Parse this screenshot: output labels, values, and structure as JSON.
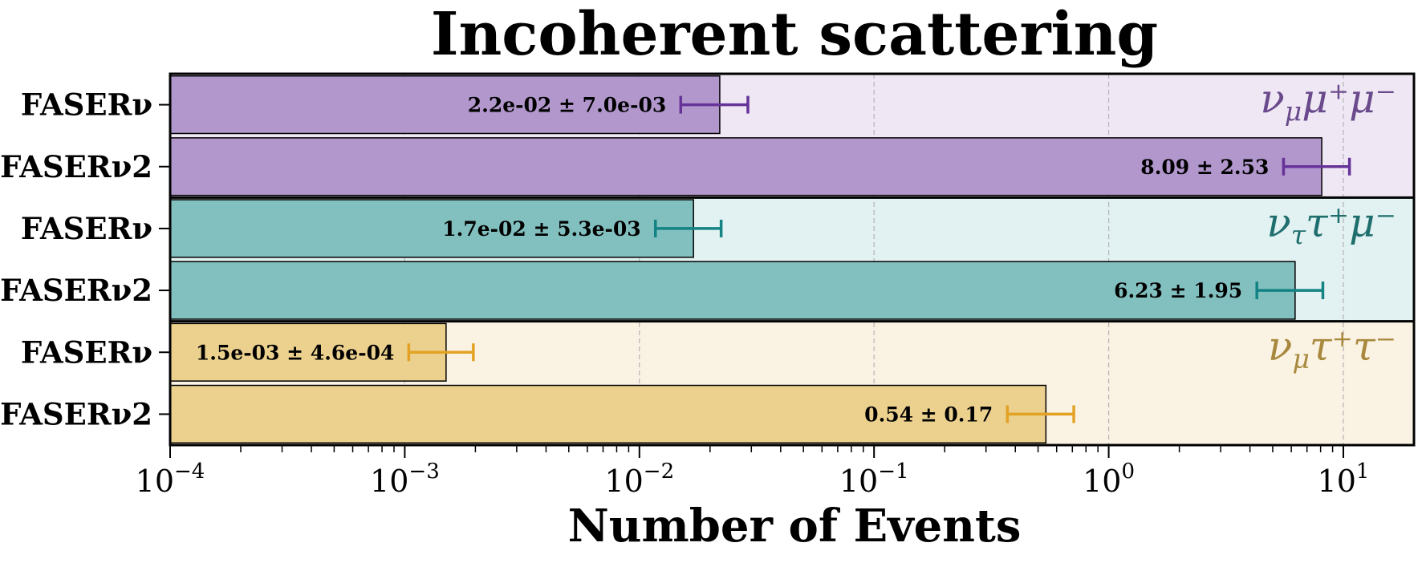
{
  "chart_data": {
    "type": "bar",
    "orientation": "horizontal",
    "title": "Incoherent scattering",
    "xlabel": "Number of Events",
    "ylabel": "",
    "x_scale": "log",
    "xlim": [
      0.0001,
      20
    ],
    "x_ticks": [
      {
        "value": 0.0001,
        "base": "10",
        "exp": "−4"
      },
      {
        "value": 0.001,
        "base": "10",
        "exp": "−3"
      },
      {
        "value": 0.01,
        "base": "10",
        "exp": "−2"
      },
      {
        "value": 0.1,
        "base": "10",
        "exp": "−1"
      },
      {
        "value": 1,
        "base": "10",
        "exp": "0"
      },
      {
        "value": 10,
        "base": "10",
        "exp": "1"
      }
    ],
    "grid": "x-major-dashed",
    "groups": [
      {
        "channel": "νμμ⁺μ⁻",
        "channel_main": "ν",
        "channel_sub": "μ",
        "channel_rest": "μ⁺μ⁻",
        "bar_color": "#b197cc",
        "band_color": "#efe8f4",
        "accent_color": "#663399",
        "label_color": "#6a4a8c",
        "bars": [
          {
            "detector": "FASERν",
            "value": 0.022,
            "error": 0.007,
            "label": "2.2e-02 ± 7.0e-03"
          },
          {
            "detector": "FASERν2",
            "value": 8.09,
            "error": 2.53,
            "label": "8.09 ± 2.53"
          }
        ]
      },
      {
        "channel": "νττ⁺μ⁻",
        "channel_main": "ν",
        "channel_sub": "τ",
        "channel_rest": "τ⁺μ⁻",
        "bar_color": "#82bfbf",
        "band_color": "#e2f1f1",
        "accent_color": "#138383",
        "label_color": "#1f6e6e",
        "bars": [
          {
            "detector": "FASERν",
            "value": 0.017,
            "error": 0.0053,
            "label": "1.7e-02 ± 5.3e-03"
          },
          {
            "detector": "FASERν2",
            "value": 6.23,
            "error": 1.95,
            "label": "6.23 ± 1.95"
          }
        ]
      },
      {
        "channel": "νμτ⁺τ⁻",
        "channel_main": "ν",
        "channel_sub": "μ",
        "channel_rest": "τ⁺τ⁻",
        "bar_color": "#ebd08e",
        "band_color": "#faf2e3",
        "accent_color": "#e3a224",
        "label_color": "#a8883c",
        "bars": [
          {
            "detector": "FASERν",
            "value": 0.0015,
            "error": 0.00046,
            "label": "1.5e-03 ± 4.6e-04"
          },
          {
            "detector": "FASERν2",
            "value": 0.54,
            "error": 0.17,
            "label": "0.54 ± 0.17"
          }
        ]
      }
    ]
  }
}
